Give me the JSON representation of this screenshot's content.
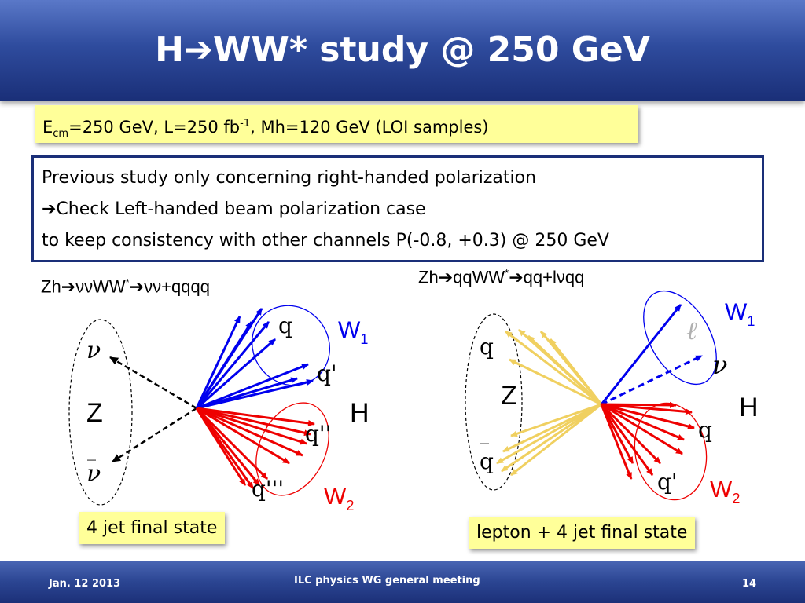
{
  "header": {
    "title_prefix": "H",
    "arrow": "➔",
    "title_suffix": "WW* study @ 250 GeV"
  },
  "info": {
    "e": "E",
    "cm": "cm",
    "text1": "=250 GeV, L=250 fb",
    "sup": "-1",
    "text2": ", Mh=120 GeV (LOI samples)"
  },
  "notes": {
    "line1": "Previous study only concerning right-handed polarization",
    "line2": "➔Check Left-handed beam polarization case",
    "line3": "to keep consistency with other channels P(-0.8, +0.3) @ 250 GeV"
  },
  "left_channel": {
    "a": "Zh",
    "arrow": "➔",
    "b": "ννWW",
    "star": "*",
    "c": "νν+qqqq"
  },
  "right_channel": {
    "a": "Zh",
    "arrow": "➔",
    "b": "qqWW",
    "star": "*",
    "c": "qq+lνqq"
  },
  "left_diagram": {
    "nu_top": "ν",
    "z": "Z",
    "nubar": "ν",
    "bar": "_",
    "q1": "q",
    "q2": "q'",
    "q3": "q''",
    "q4": "q'''",
    "w1": "W",
    "w1_sub": "1",
    "w2": "W",
    "w2_sub": "2",
    "h": "H"
  },
  "right_diagram": {
    "q_top": "q",
    "z": "Z",
    "bar": "_",
    "qbar": "q",
    "lepton": "ℓ",
    "nu": "ν",
    "q1": "q",
    "q2": "q'",
    "w1": "W",
    "w1_sub": "1",
    "w2": "W",
    "w2_sub": "2",
    "h": "H"
  },
  "labels": {
    "left": "4 jet final state",
    "right": "lepton + 4 jet final state"
  },
  "footer": {
    "date": "Jan. 12 2013",
    "meeting": "ILC physics WG general meeting",
    "page": "14"
  },
  "colors": {
    "title_bar": "#2f4c9e",
    "w1_lines": "#0000ee",
    "w2_lines": "#ee0000",
    "z_lines_right": "#f0d060",
    "label_bg": "#ffff99"
  }
}
